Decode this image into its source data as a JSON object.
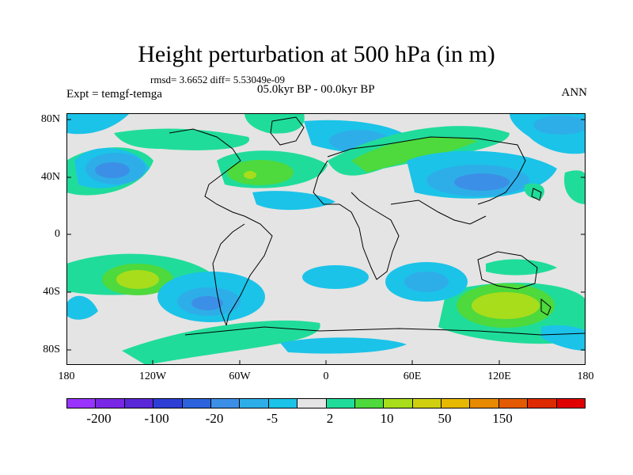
{
  "title": "Height perturbation at 500 hPa (in m)",
  "stats": "rmsd= 3.6652 diff= 5.53049e-09",
  "experiment": "Expt = temgf-temga",
  "period": "05.0kyr BP - 00.0kyr BP",
  "season": "ANN",
  "lat_ticks": [
    "80N",
    "40N",
    "0",
    "40S",
    "80S"
  ],
  "lon_ticks": [
    "180",
    "120W",
    "60W",
    "0",
    "60E",
    "120E",
    "180"
  ],
  "colorbar": {
    "colors": [
      "#9a33ff",
      "#7a26e6",
      "#5a28d9",
      "#2e3fd6",
      "#2c63dd",
      "#3c8fe6",
      "#2eaee8",
      "#1bc3e8",
      "#e4e4e4",
      "#20dc9a",
      "#4ed93c",
      "#a8dd1c",
      "#d0d010",
      "#e6b800",
      "#e88a00",
      "#e35a00",
      "#de2a00",
      "#e00000"
    ],
    "labels": [
      "-200",
      "-100",
      "-20",
      "-5",
      "2",
      "10",
      "50",
      "150"
    ]
  }
}
